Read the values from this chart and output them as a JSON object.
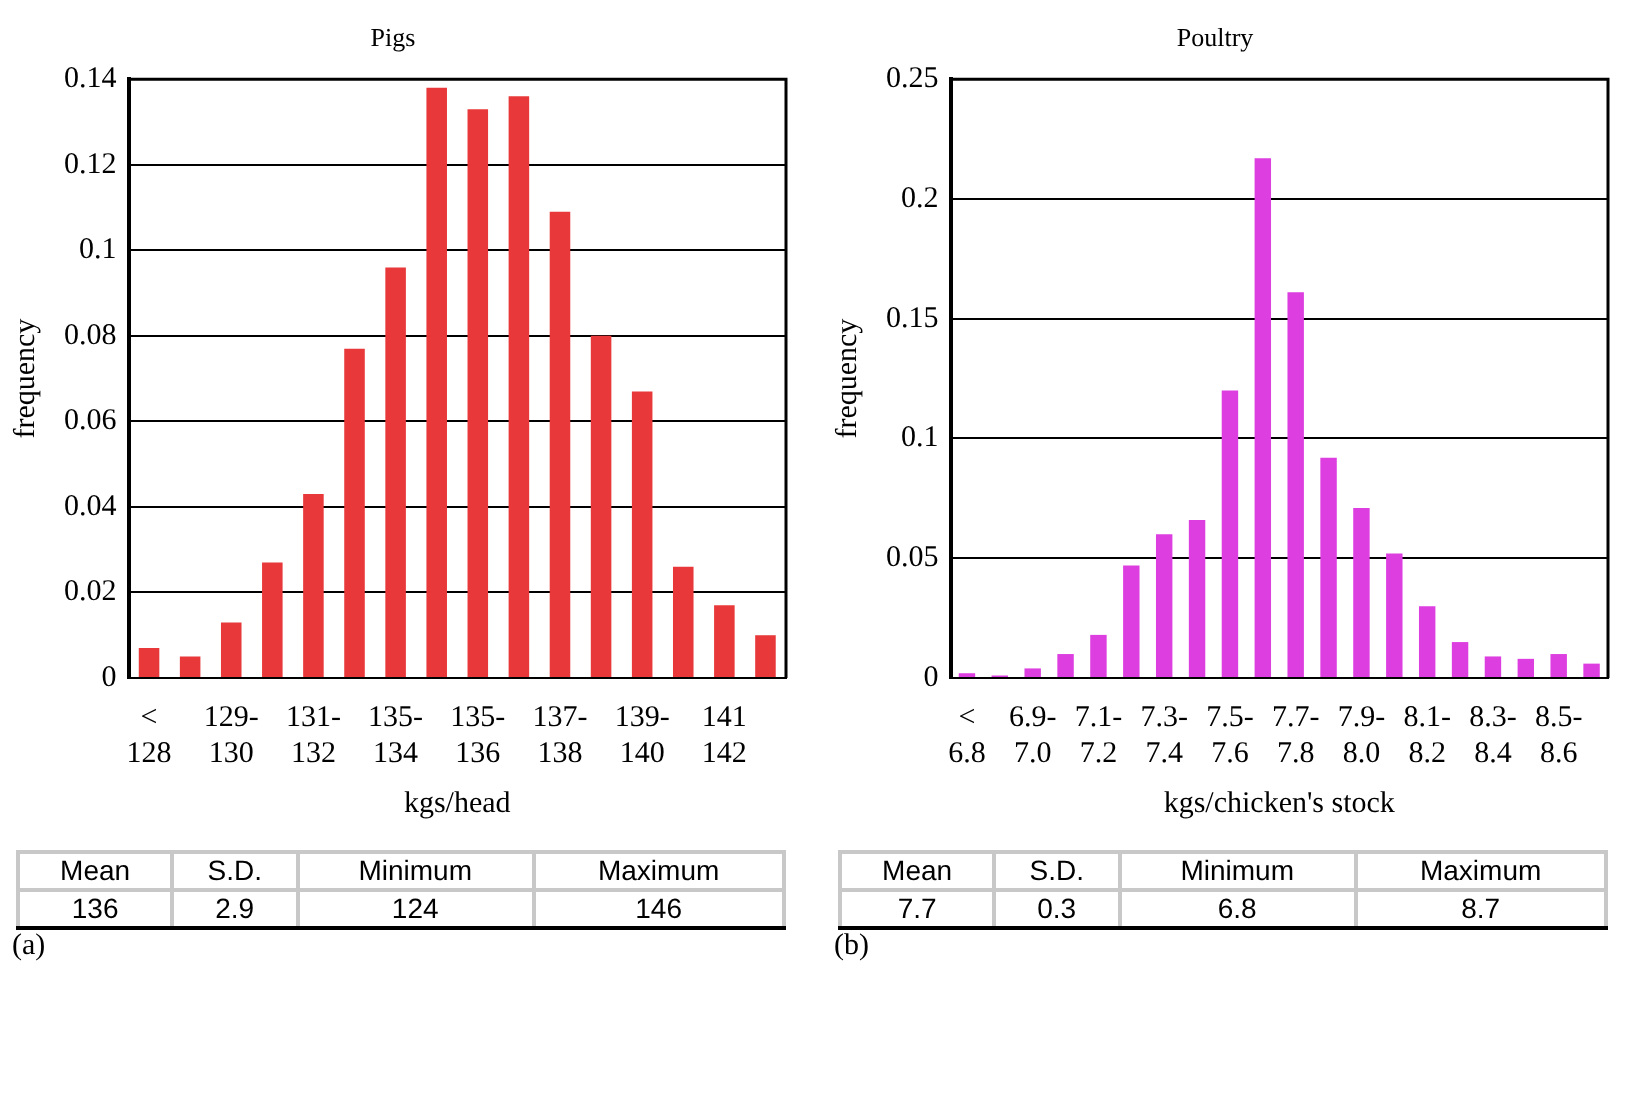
{
  "chart_data": [
    {
      "type": "bar",
      "title": "Pigs",
      "xlabel": "kgs/head",
      "ylabel": "frequency",
      "categories": [
        "< 128",
        null,
        "129-130",
        null,
        "131-132",
        null,
        "135-134",
        null,
        "135-136",
        null,
        "137-138",
        null,
        "139-140",
        null,
        "141 142",
        null
      ],
      "values": [
        0.007,
        0.005,
        0.013,
        0.027,
        0.043,
        0.077,
        0.096,
        0.138,
        0.133,
        0.136,
        0.109,
        0.08,
        0.067,
        0.026,
        0.017,
        0.01
      ],
      "color": "#e8383a",
      "ylim": [
        0,
        0.14
      ],
      "yticks": [
        0,
        0.02,
        0.04,
        0.06,
        0.08,
        0.1,
        0.12,
        0.14
      ],
      "grid": "y",
      "annotations": [
        "Mean",
        "S.D.",
        "Minimum",
        "Maximum",
        "136",
        "2.9",
        "124",
        "146",
        "(a)"
      ]
    },
    {
      "type": "bar",
      "title": "Poultry",
      "xlabel": "kgs/chicken's stock",
      "ylabel": "frequency",
      "categories": [
        "< 6.8",
        null,
        "6.9-7.0",
        null,
        "7.1-7.2",
        null,
        "7.3-7.4",
        null,
        "7.5-7.6",
        null,
        "7.7-7.8",
        null,
        "7.9-8.0",
        null,
        "8.1-8.2",
        null,
        "8.3-8.4",
        null,
        "8.5-8.6",
        null
      ],
      "values": [
        0.002,
        0.001,
        0.004,
        0.01,
        0.018,
        0.047,
        0.06,
        0.066,
        0.12,
        0.217,
        0.161,
        0.092,
        0.071,
        0.052,
        0.03,
        0.015,
        0.009,
        0.008,
        0.01,
        0.006
      ],
      "color": "#dd3ee0",
      "ylim": [
        0,
        0.25
      ],
      "yticks": [
        0,
        0.05,
        0.1,
        0.15,
        0.2,
        0.25
      ],
      "grid": "y",
      "annotations": [
        "Mean",
        "S.D.",
        "Minimum",
        "Maximum",
        "7.7",
        "0.3",
        "6.8",
        "8.7",
        "(b)"
      ]
    }
  ]
}
